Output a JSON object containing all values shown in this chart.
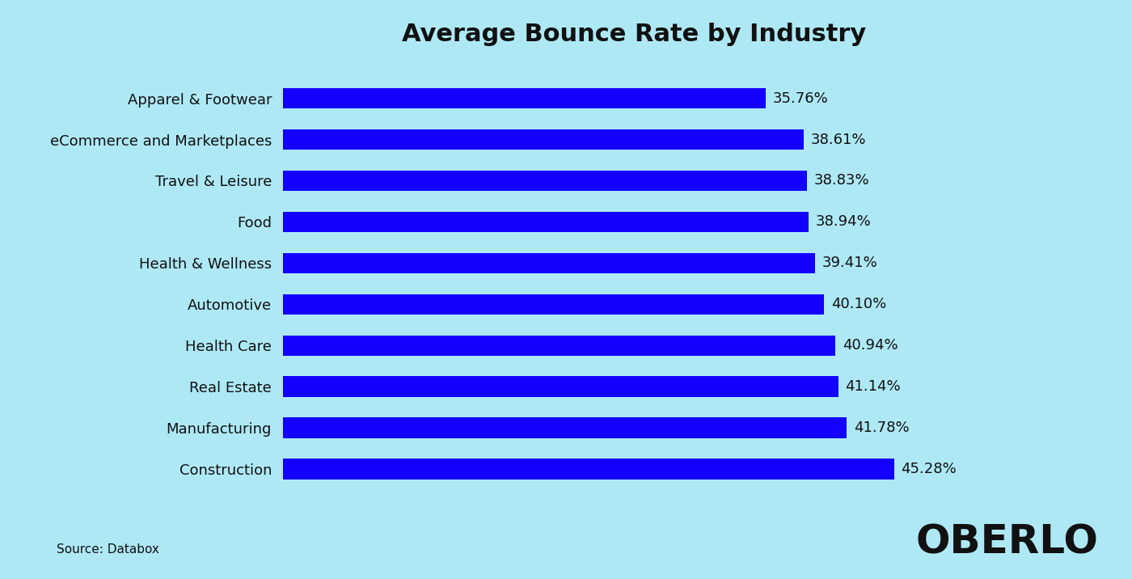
{
  "title": "Average Bounce Rate by Industry",
  "categories": [
    "Apparel & Footwear",
    "eCommerce and Marketplaces",
    "Travel & Leisure",
    "Food",
    "Health & Wellness",
    "Automotive",
    "Health Care",
    "Real Estate",
    "Manufacturing",
    "Construction"
  ],
  "values": [
    35.76,
    38.61,
    38.83,
    38.94,
    39.41,
    40.1,
    40.94,
    41.14,
    41.78,
    45.28
  ],
  "labels": [
    "35.76%",
    "38.61%",
    "38.83%",
    "38.94%",
    "39.41%",
    "40.10%",
    "40.94%",
    "41.14%",
    "41.78%",
    "45.28%"
  ],
  "bar_color": "#1400ff",
  "background_color": "#aee8f5",
  "text_color": "#111111",
  "title_fontsize": 22,
  "label_fontsize": 13,
  "value_fontsize": 13,
  "source_text": "Source: Databox",
  "source_fontsize": 11,
  "oberlo_text": "OBERLO",
  "oberlo_fontsize": 36,
  "xlim_max": 52,
  "bar_height": 0.5
}
